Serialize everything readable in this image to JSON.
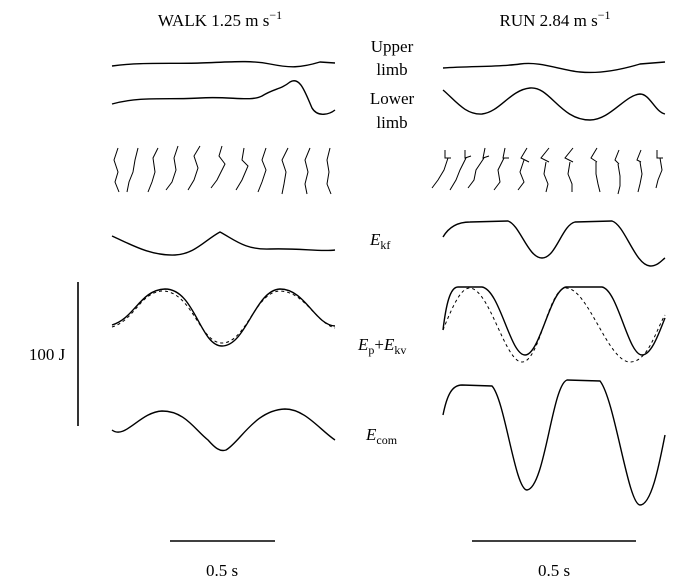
{
  "columns": [
    {
      "title": "WALK 1.25 m s",
      "title_sup": "−1",
      "scale_bar": "0.5 s"
    },
    {
      "title": "RUN 2.84 m s",
      "title_sup": "−1",
      "scale_bar": "0.5 s"
    }
  ],
  "row_labels": {
    "upper_limb": [
      "Upper",
      "limb"
    ],
    "lower_limb": [
      "Lower",
      "limb"
    ],
    "ekf": {
      "symbol": "E",
      "sub": "kf"
    },
    "ep_ekv": {
      "symbol1": "E",
      "sub1": "p",
      "plus": "+",
      "symbol2": "E",
      "sub2": "kv"
    },
    "ecom": {
      "symbol": "E",
      "sub": "com"
    }
  },
  "vertical_scale_bar": "100 J"
}
